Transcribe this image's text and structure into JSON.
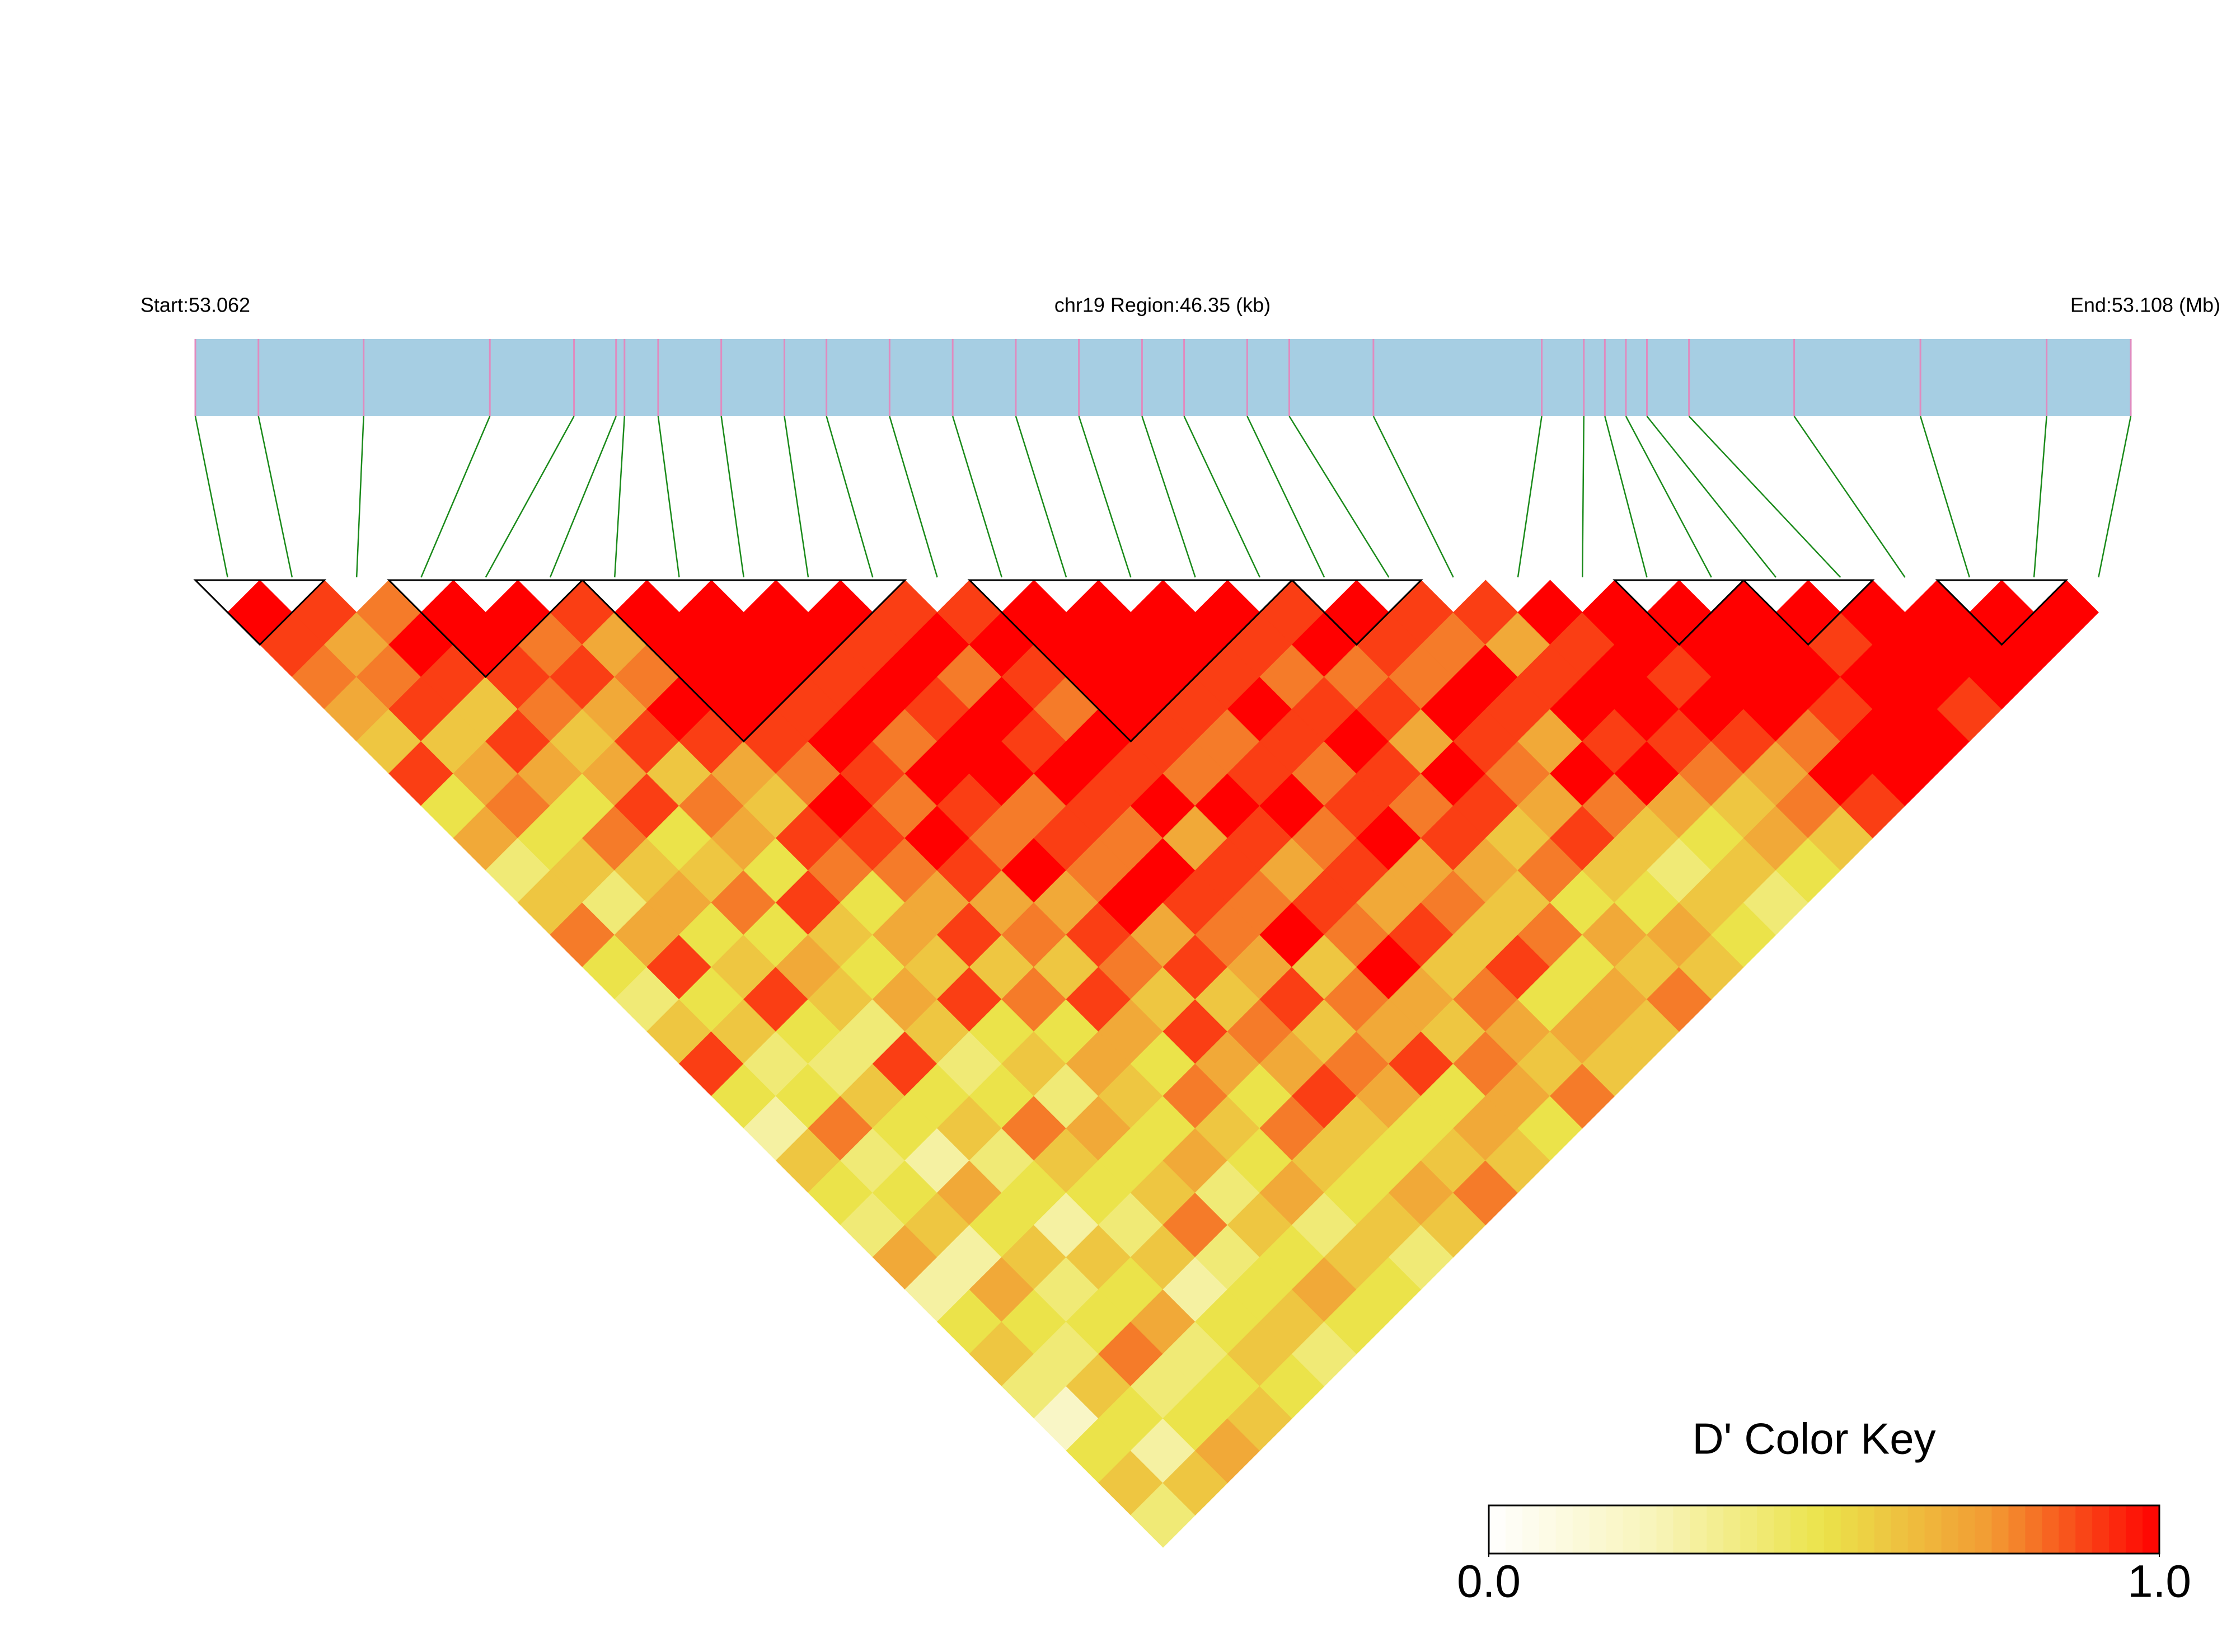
{
  "chart_data": {
    "type": "ld_heatmap",
    "title_left": "Start:53.062",
    "title_center": "chr19 Region:46.35 (kb)",
    "title_right": "End:53.108 (Mb)",
    "xlim": [
      53.062,
      53.108
    ],
    "positions": [
      53.062,
      53.0635,
      53.066,
      53.069,
      53.071,
      53.072,
      53.0722,
      53.073,
      53.0745,
      53.076,
      53.077,
      53.0785,
      53.08,
      53.0815,
      53.083,
      53.0845,
      53.0855,
      53.087,
      53.088,
      53.09,
      53.094,
      53.095,
      53.0955,
      53.096,
      53.0965,
      53.0975,
      53.1,
      53.103,
      53.106,
      53.108
    ],
    "ld": [
      [
        1,
        0.9,
        0.8,
        0.7,
        0.6,
        0.9,
        0.5,
        0.7,
        0.4,
        0.6,
        0.8,
        0.5,
        0.4,
        0.6,
        0.9,
        0.5,
        0.3,
        0.6,
        0.5,
        0.4,
        0.7,
        0.3,
        0.5,
        0.6,
        0.4,
        0.2,
        0.5,
        0.6,
        0.4
      ],
      [
        0.9,
        0.7,
        0.8,
        0.9,
        0.6,
        0.7,
        0.8,
        0.5,
        0.6,
        0.4,
        0.7,
        0.9,
        0.5,
        0.6,
        0.4,
        0.5,
        0.8,
        0.4,
        0.5,
        0.6,
        0.3,
        0.7,
        0.5,
        0.4,
        0.6,
        0.5,
        0.3,
        0.6
      ],
      [
        0.8,
        1,
        0.9,
        0.6,
        0.9,
        0.7,
        0.5,
        0.8,
        0.6,
        0.7,
        0.5,
        0.6,
        0.9,
        0.5,
        0.4,
        0.6,
        0.5,
        0.3,
        0.7,
        0.5,
        0.6,
        0.4,
        0.5,
        0.8,
        0.4,
        0.5,
        0.7
      ],
      [
        1,
        1,
        0.9,
        0.8,
        0.6,
        0.7,
        0.9,
        0.5,
        0.6,
        0.8,
        0.5,
        0.7,
        0.6,
        0.4,
        0.9,
        0.5,
        0.6,
        0.4,
        0.5,
        0.3,
        0.6,
        0.5,
        0.7,
        0.4,
        0.5,
        0.6
      ],
      [
        1,
        0.8,
        0.9,
        0.7,
        0.9,
        0.6,
        0.8,
        0.7,
        0.5,
        0.9,
        0.6,
        0.5,
        0.7,
        0.6,
        0.4,
        0.5,
        0.8,
        0.6,
        0.5,
        0.4,
        0.6,
        0.3,
        0.5,
        0.6,
        0.5
      ],
      [
        0.9,
        0.7,
        0.8,
        1,
        0.9,
        0.7,
        0.6,
        0.9,
        0.8,
        0.5,
        0.7,
        0.6,
        0.9,
        0.5,
        0.6,
        0.4,
        0.7,
        0.5,
        0.6,
        0.8,
        0.4,
        0.5,
        0.6,
        0.4
      ],
      [
        1,
        1,
        1,
        1,
        0.9,
        0.8,
        1,
        0.9,
        0.8,
        0.7,
        0.9,
        0.6,
        0.8,
        0.5,
        0.7,
        0.6,
        0.5,
        0.7,
        0.4,
        0.6,
        0.5,
        0.7,
        0.5
      ],
      [
        1,
        1,
        1,
        0.9,
        1,
        0.9,
        0.8,
        1,
        0.9,
        0.7,
        0.8,
        0.6,
        0.9,
        0.7,
        0.5,
        0.8,
        0.6,
        0.5,
        0.7,
        0.4,
        0.6,
        0.5
      ],
      [
        1,
        1,
        0.9,
        1,
        0.8,
        1,
        0.9,
        0.8,
        1,
        0.7,
        0.9,
        0.8,
        0.6,
        0.9,
        0.7,
        0.5,
        0.8,
        0.6,
        0.5,
        0.6,
        0.4
      ],
      [
        1,
        0.9,
        1,
        0.9,
        1,
        1,
        0.8,
        0.9,
        0.8,
        1,
        0.7,
        0.9,
        0.6,
        0.8,
        0.7,
        0.9,
        0.6,
        0.5,
        0.7,
        0.6
      ],
      [
        0.9,
        1,
        0.8,
        1,
        0.9,
        1,
        0.9,
        0.8,
        1,
        0.9,
        0.8,
        0.7,
        0.9,
        0.6,
        0.8,
        0.7,
        0.5,
        0.6,
        0.8
      ],
      [
        0.9,
        1,
        0.9,
        0.8,
        1,
        0.9,
        1,
        0.7,
        0.9,
        0.8,
        1,
        0.6,
        0.8,
        0.7,
        0.9,
        0.5,
        0.7,
        0.6
      ],
      [
        1,
        1,
        1,
        1,
        0.9,
        0.8,
        1,
        0.9,
        0.7,
        0.9,
        0.8,
        1,
        0.7,
        0.6,
        0.8,
        0.7,
        0.5
      ],
      [
        1,
        1,
        1,
        0.9,
        0.8,
        0.9,
        1,
        0.8,
        0.9,
        0.7,
        0.9,
        0.6,
        0.8,
        0.7,
        0.6,
        0.8
      ],
      [
        1,
        1,
        0.9,
        1,
        0.9,
        0.8,
        0.9,
        1,
        0.7,
        0.8,
        0.6,
        0.9,
        0.5,
        0.7,
        0.6
      ],
      [
        1,
        0.9,
        0.8,
        0.9,
        1,
        0.9,
        0.8,
        0.9,
        0.7,
        0.6,
        0.8,
        0.5,
        0.7,
        0.6
      ],
      [
        0.9,
        1,
        0.8,
        0.9,
        0.7,
        1,
        0.9,
        0.6,
        0.8,
        0.5,
        0.7,
        0.6,
        0.8
      ],
      [
        1,
        0.9,
        0.8,
        1,
        0.9,
        0.8,
        0.7,
        0.9,
        0.6,
        0.5,
        0.7,
        0.6
      ],
      [
        0.9,
        0.8,
        1,
        0.9,
        0.7,
        1,
        0.8,
        0.6,
        0.4,
        0.6,
        0.5
      ],
      [
        0.9,
        0.7,
        0.9,
        1,
        0.9,
        1,
        0.7,
        0.5,
        0.6,
        0.4
      ],
      [
        1,
        0.9,
        1,
        1,
        0.9,
        0.8,
        0.6,
        0.7,
        0.5
      ],
      [
        1,
        1,
        0.9,
        1,
        0.9,
        0.7,
        0.8,
        0.6
      ],
      [
        1,
        1,
        1,
        1,
        0.8,
        1,
        0.9
      ],
      [
        1,
        1,
        1,
        0.9,
        1,
        1
      ],
      [
        1,
        0.9,
        1,
        1,
        1
      ],
      [
        1,
        1,
        1,
        0.9
      ],
      [
        1,
        1,
        1
      ],
      [
        1,
        1
      ],
      [
        1
      ]
    ],
    "blocks": [
      [
        0,
        1
      ],
      [
        3,
        5
      ],
      [
        6,
        10
      ],
      [
        12,
        16
      ],
      [
        17,
        18
      ],
      [
        22,
        23
      ],
      [
        24,
        25
      ],
      [
        27,
        28
      ]
    ],
    "colormap": [
      "#ffffff",
      "#f8f4b8",
      "#ebe34a",
      "#f29a33",
      "#ff0000"
    ],
    "clim": [
      0,
      1
    ],
    "colorbar_title": "D' Color Key",
    "colorbar_ticks": [
      {
        "value": 0,
        "label": "0.0"
      },
      {
        "value": 1,
        "label": "1.0"
      }
    ],
    "bar_color": "#a6cee3",
    "snp_color": "#e08bbf",
    "connector_color": "#1a8a1a"
  }
}
